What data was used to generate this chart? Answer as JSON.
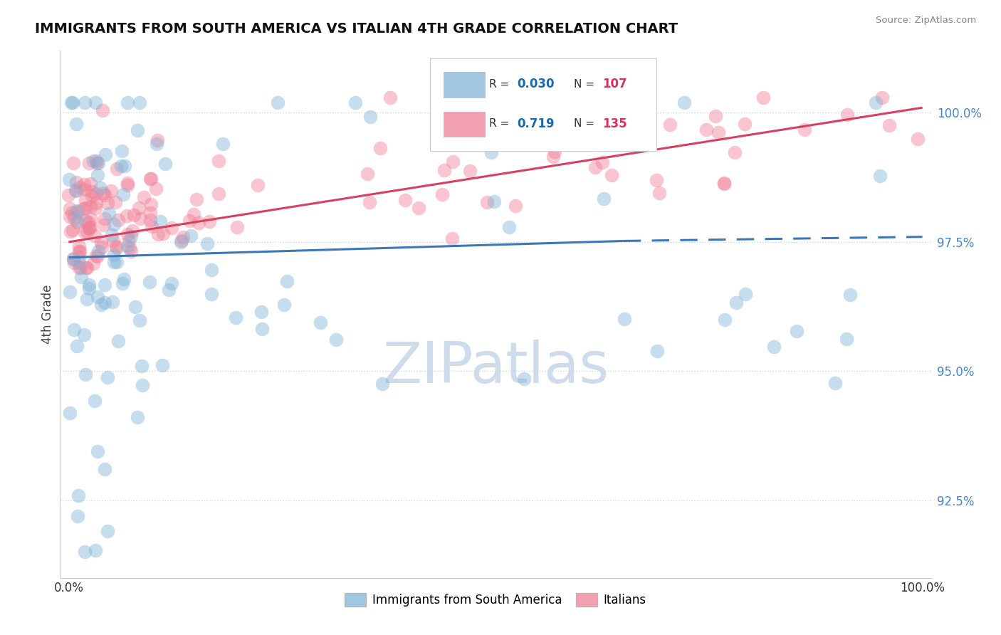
{
  "title": "IMMIGRANTS FROM SOUTH AMERICA VS ITALIAN 4TH GRADE CORRELATION CHART",
  "source": "Source: ZipAtlas.com",
  "ylabel": "4th Grade",
  "yticks": [
    92.5,
    95.0,
    97.5,
    100.0
  ],
  "xlim": [
    -1.0,
    101.0
  ],
  "ylim": [
    91.0,
    101.2
  ],
  "blue_color": "#82b4d8",
  "pink_color": "#f08098",
  "blue_line_color": "#3a78b8",
  "pink_line_color": "#d84060",
  "watermark_color": "#c8d8e8",
  "blue_R": 0.03,
  "blue_N": 107,
  "pink_R": 0.719,
  "pink_N": 135,
  "legend_box_color": "#f0f0f0",
  "legend_border_color": "#cccccc"
}
